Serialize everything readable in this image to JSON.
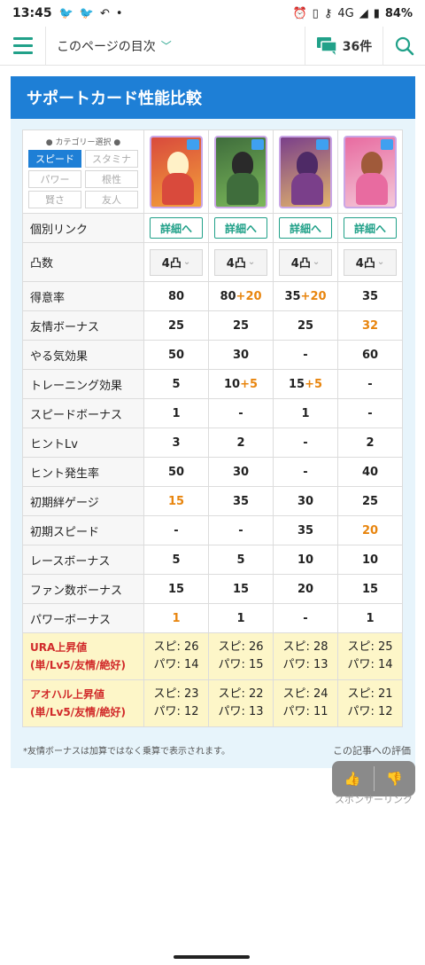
{
  "status": {
    "time": "13:45",
    "battery": "84%",
    "network": "4G"
  },
  "topbar": {
    "toc_label": "このページの目次",
    "comment_count": "36件"
  },
  "panel": {
    "title": "サポートカード性能比較"
  },
  "category": {
    "header": "● カテゴリー選択 ●",
    "buttons": [
      "スピード",
      "スタミナ",
      "パワー",
      "根性",
      "賢さ",
      "友人"
    ],
    "active": "スピード"
  },
  "cards": [
    {
      "name": "card-1",
      "colors": [
        "#d94a3c",
        "#f3a13a",
        "#fff1c7"
      ]
    },
    {
      "name": "card-2",
      "colors": [
        "#3f6d3c",
        "#7bb85a",
        "#2a2a2a"
      ]
    },
    {
      "name": "card-3",
      "colors": [
        "#7a3f8a",
        "#e2b46c",
        "#4e2a66"
      ]
    },
    {
      "name": "card-4",
      "colors": [
        "#e86ba0",
        "#f4c9d9",
        "#a05a3a"
      ]
    }
  ],
  "detail_label": "詳細へ",
  "totsu_label": "4凸",
  "rows": [
    {
      "label": "個別リンク",
      "type": "link"
    },
    {
      "label": "凸数",
      "type": "totsu"
    },
    {
      "label": "得意率",
      "values": [
        [
          "80"
        ],
        [
          "80",
          "+20"
        ],
        [
          "35",
          "+20"
        ],
        [
          "35"
        ]
      ]
    },
    {
      "label": "友情ボーナス",
      "values": [
        [
          "25"
        ],
        [
          "25"
        ],
        [
          "25"
        ],
        [
          "",
          "32"
        ]
      ]
    },
    {
      "label": "やる気効果",
      "values": [
        [
          "50"
        ],
        [
          "30"
        ],
        [
          "-"
        ],
        [
          "60"
        ]
      ]
    },
    {
      "label": "トレーニング効果",
      "values": [
        [
          "5"
        ],
        [
          "10",
          "+5"
        ],
        [
          "15",
          "+5"
        ],
        [
          "-"
        ]
      ]
    },
    {
      "label": "スピードボーナス",
      "values": [
        [
          "1"
        ],
        [
          "-"
        ],
        [
          "1"
        ],
        [
          "-"
        ]
      ]
    },
    {
      "label": "ヒントLv",
      "values": [
        [
          "3"
        ],
        [
          "2"
        ],
        [
          "-"
        ],
        [
          "2"
        ]
      ]
    },
    {
      "label": "ヒント発生率",
      "values": [
        [
          "50"
        ],
        [
          "30"
        ],
        [
          "-"
        ],
        [
          "40"
        ]
      ]
    },
    {
      "label": "初期絆ゲージ",
      "values": [
        [
          "",
          "15"
        ],
        [
          "35"
        ],
        [
          "30"
        ],
        [
          "25"
        ]
      ]
    },
    {
      "label": "初期スピード",
      "values": [
        [
          "-"
        ],
        [
          "-"
        ],
        [
          "35"
        ],
        [
          "",
          "20"
        ]
      ]
    },
    {
      "label": "レースボーナス",
      "values": [
        [
          "5"
        ],
        [
          "5"
        ],
        [
          "10"
        ],
        [
          "10"
        ]
      ]
    },
    {
      "label": "ファン数ボーナス",
      "values": [
        [
          "15"
        ],
        [
          "15"
        ],
        [
          "20"
        ],
        [
          "15"
        ]
      ]
    },
    {
      "label": "パワーボーナス",
      "values": [
        [
          "",
          "1"
        ],
        [
          "1"
        ],
        [
          "-"
        ],
        [
          "1"
        ]
      ]
    }
  ],
  "ura": {
    "label1": "URA上昇値",
    "label2": "(単/Lv5/友情/絶好)",
    "values": [
      [
        "スピ: 26",
        "パワ: 14"
      ],
      [
        "スピ: 26",
        "パワ: 15"
      ],
      [
        "スピ: 28",
        "パワ: 13"
      ],
      [
        "スピ: 25",
        "パワ: 14"
      ]
    ]
  },
  "aoharu": {
    "label1": "アオハル上昇値",
    "label2": "(単/Lv5/友情/絶好)",
    "values": [
      [
        "スピ: 23",
        "パワ: 12"
      ],
      [
        "スピ: 22",
        "パワ: 13"
      ],
      [
        "スピ: 24",
        "パワ: 11"
      ],
      [
        "スピ: 21",
        "パワ: 12"
      ]
    ]
  },
  "note": "*友情ボーナスは加算ではなく乗算で表示されます。",
  "rating_label": "この記事への評価",
  "sponsor_label": "スポンサーリンク"
}
